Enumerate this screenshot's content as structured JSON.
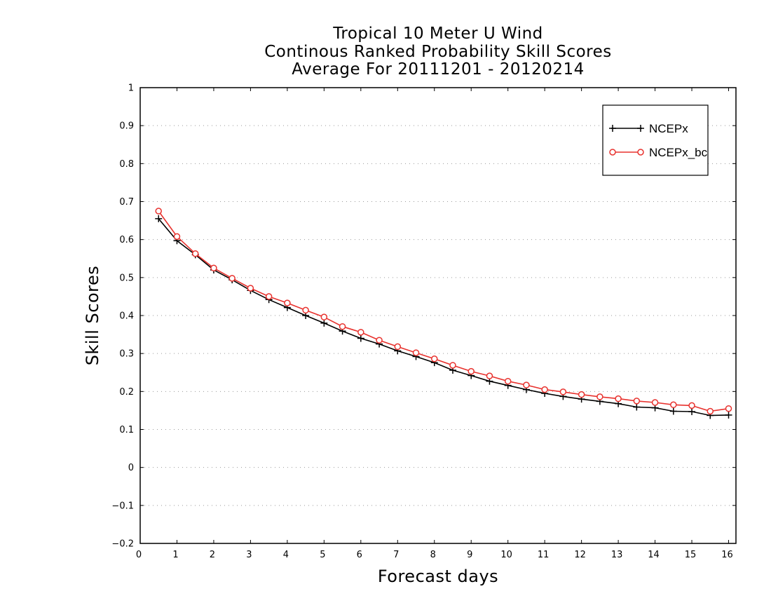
{
  "chart_data": {
    "type": "line",
    "title": [
      "Tropical 10 Meter U Wind",
      "Continous Ranked Probability Skill Scores",
      "Average For 20111201 - 20120214"
    ],
    "xlabel": "Forecast days",
    "ylabel": "Skill Scores",
    "xlim": [
      0,
      16.2
    ],
    "ylim": [
      -0.2,
      1.0
    ],
    "xticks": [
      "0",
      "1",
      "2",
      "3",
      "4",
      "5",
      "6",
      "7",
      "8",
      "9",
      "10",
      "11",
      "12",
      "13",
      "14",
      "15",
      "16"
    ],
    "yticks": [
      "-0.2",
      "-0.1",
      "0",
      "0.1",
      "0.2",
      "0.3",
      "0.4",
      "0.5",
      "0.6",
      "0.7",
      "0.8",
      "0.9",
      "1"
    ],
    "grid": "horizontal dotted",
    "legend_position": "top-right",
    "x": [
      0.5,
      1,
      1.5,
      2,
      2.5,
      3,
      3.5,
      4,
      4.5,
      5,
      5.5,
      6,
      6.5,
      7,
      7.5,
      8,
      8.5,
      9,
      9.5,
      10,
      10.5,
      11,
      11.5,
      12,
      12.5,
      13,
      13.5,
      14,
      14.5,
      15,
      15.5,
      16
    ],
    "series": [
      {
        "name": "NCEPx",
        "color": "#000000",
        "marker": "plus",
        "values": [
          0.655,
          0.597,
          0.56,
          0.52,
          0.494,
          0.466,
          0.442,
          0.421,
          0.4,
          0.38,
          0.359,
          0.34,
          0.325,
          0.307,
          0.292,
          0.276,
          0.256,
          0.242,
          0.227,
          0.216,
          0.205,
          0.195,
          0.187,
          0.18,
          0.174,
          0.168,
          0.159,
          0.157,
          0.148,
          0.147,
          0.137,
          0.138
        ]
      },
      {
        "name": "NCEPx_bc",
        "color": "#e8322e",
        "marker": "circle",
        "values": [
          0.675,
          0.608,
          0.563,
          0.525,
          0.498,
          0.472,
          0.45,
          0.433,
          0.414,
          0.396,
          0.371,
          0.356,
          0.335,
          0.318,
          0.302,
          0.286,
          0.269,
          0.253,
          0.241,
          0.227,
          0.217,
          0.205,
          0.199,
          0.192,
          0.186,
          0.181,
          0.175,
          0.171,
          0.165,
          0.163,
          0.148,
          0.155
        ]
      }
    ]
  }
}
